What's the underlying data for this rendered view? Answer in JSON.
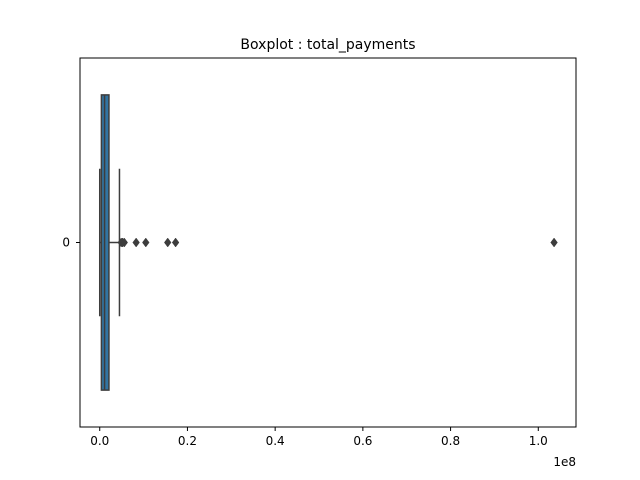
{
  "chart_data": {
    "type": "boxplot",
    "title": "Boxplot : total_payments",
    "orientation": "horizontal",
    "xlabel": "",
    "ylabel": "",
    "x_scale_label": "1e8",
    "x_scale_factor": 100000000,
    "xlim": [
      -4500000,
      108600000
    ],
    "xticks": [
      0,
      20000000,
      40000000,
      60000000,
      80000000,
      100000000
    ],
    "xtick_labels": [
      "0.0",
      "0.2",
      "0.4",
      "0.6",
      "0.8",
      "1.0"
    ],
    "categories": [
      "0"
    ],
    "box_color": "#3274a1",
    "edge_color": "#3d3d3d",
    "boxes": [
      {
        "category": "0",
        "whisker_low": 0,
        "q1": 380000,
        "median": 1100000,
        "q3": 2100000,
        "whisker_high": 4500000,
        "outliers": [
          4900000,
          5200000,
          5600000,
          8300000,
          10500000,
          15500000,
          17300000,
          103600000
        ]
      }
    ]
  }
}
